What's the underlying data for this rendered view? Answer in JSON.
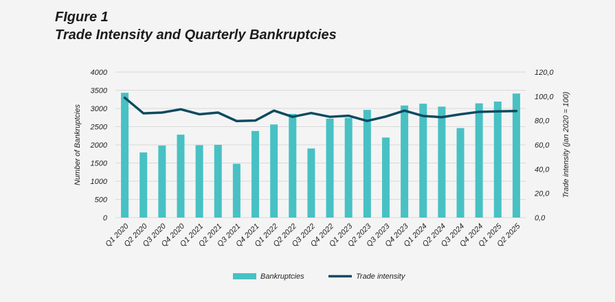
{
  "figure": {
    "label": "FIgure 1",
    "title": "Trade Intensity and Quarterly Bankruptcies"
  },
  "colors": {
    "bars": "#48c1c4",
    "line": "#0d4a60",
    "grid": "#d9d9d9",
    "background": "#f4f4f4"
  },
  "chart_data": {
    "type": "bar+line",
    "categories": [
      "Q1 2020",
      "Q2 2020",
      "Q3 2020",
      "Q4 2020",
      "Q1 2021",
      "Q2 2021",
      "Q3 2021",
      "Q4 2021",
      "Q1 2022",
      "Q2 2022",
      "Q3 2022",
      "Q4 2022",
      "Q1 2023",
      "Q2 2023",
      "Q3 2023",
      "Q4 2023",
      "Q1 2024",
      "Q2 2024",
      "Q3 2024",
      "Q4 2024",
      "Q1 2025",
      "Q2 2025"
    ],
    "series": [
      {
        "name": "Bankruptcies",
        "type": "bar",
        "axis": "left",
        "values": [
          3430,
          1790,
          1980,
          2280,
          1990,
          2000,
          1480,
          2380,
          2560,
          2850,
          1900,
          2720,
          2740,
          2960,
          2200,
          3080,
          3130,
          3050,
          2460,
          3140,
          3190,
          3410
        ]
      },
      {
        "name": "Trade intensity",
        "type": "line",
        "axis": "right",
        "values": [
          98.8,
          86.0,
          86.6,
          89.3,
          85.2,
          86.6,
          79.6,
          80.0,
          88.2,
          83.1,
          86.2,
          83.1,
          84.0,
          79.7,
          83.3,
          88.2,
          83.8,
          82.8,
          85.2,
          87.2,
          87.6,
          87.9
        ]
      }
    ],
    "ylabel": "Number of Bankruptcies",
    "y2label": "Trade intensity   (jan 2020 = 100)",
    "ylim": [
      0,
      4000
    ],
    "y2lim": [
      0,
      120
    ],
    "yticks": [
      "0",
      "500",
      "1000",
      "1500",
      "2000",
      "2500",
      "3000",
      "3500",
      "4000"
    ],
    "y2ticks": [
      "0,0",
      "20,0",
      "40,0",
      "60,0",
      "80,0",
      "100,0",
      "120,0"
    ],
    "grid": true,
    "legend_position": "bottom"
  }
}
